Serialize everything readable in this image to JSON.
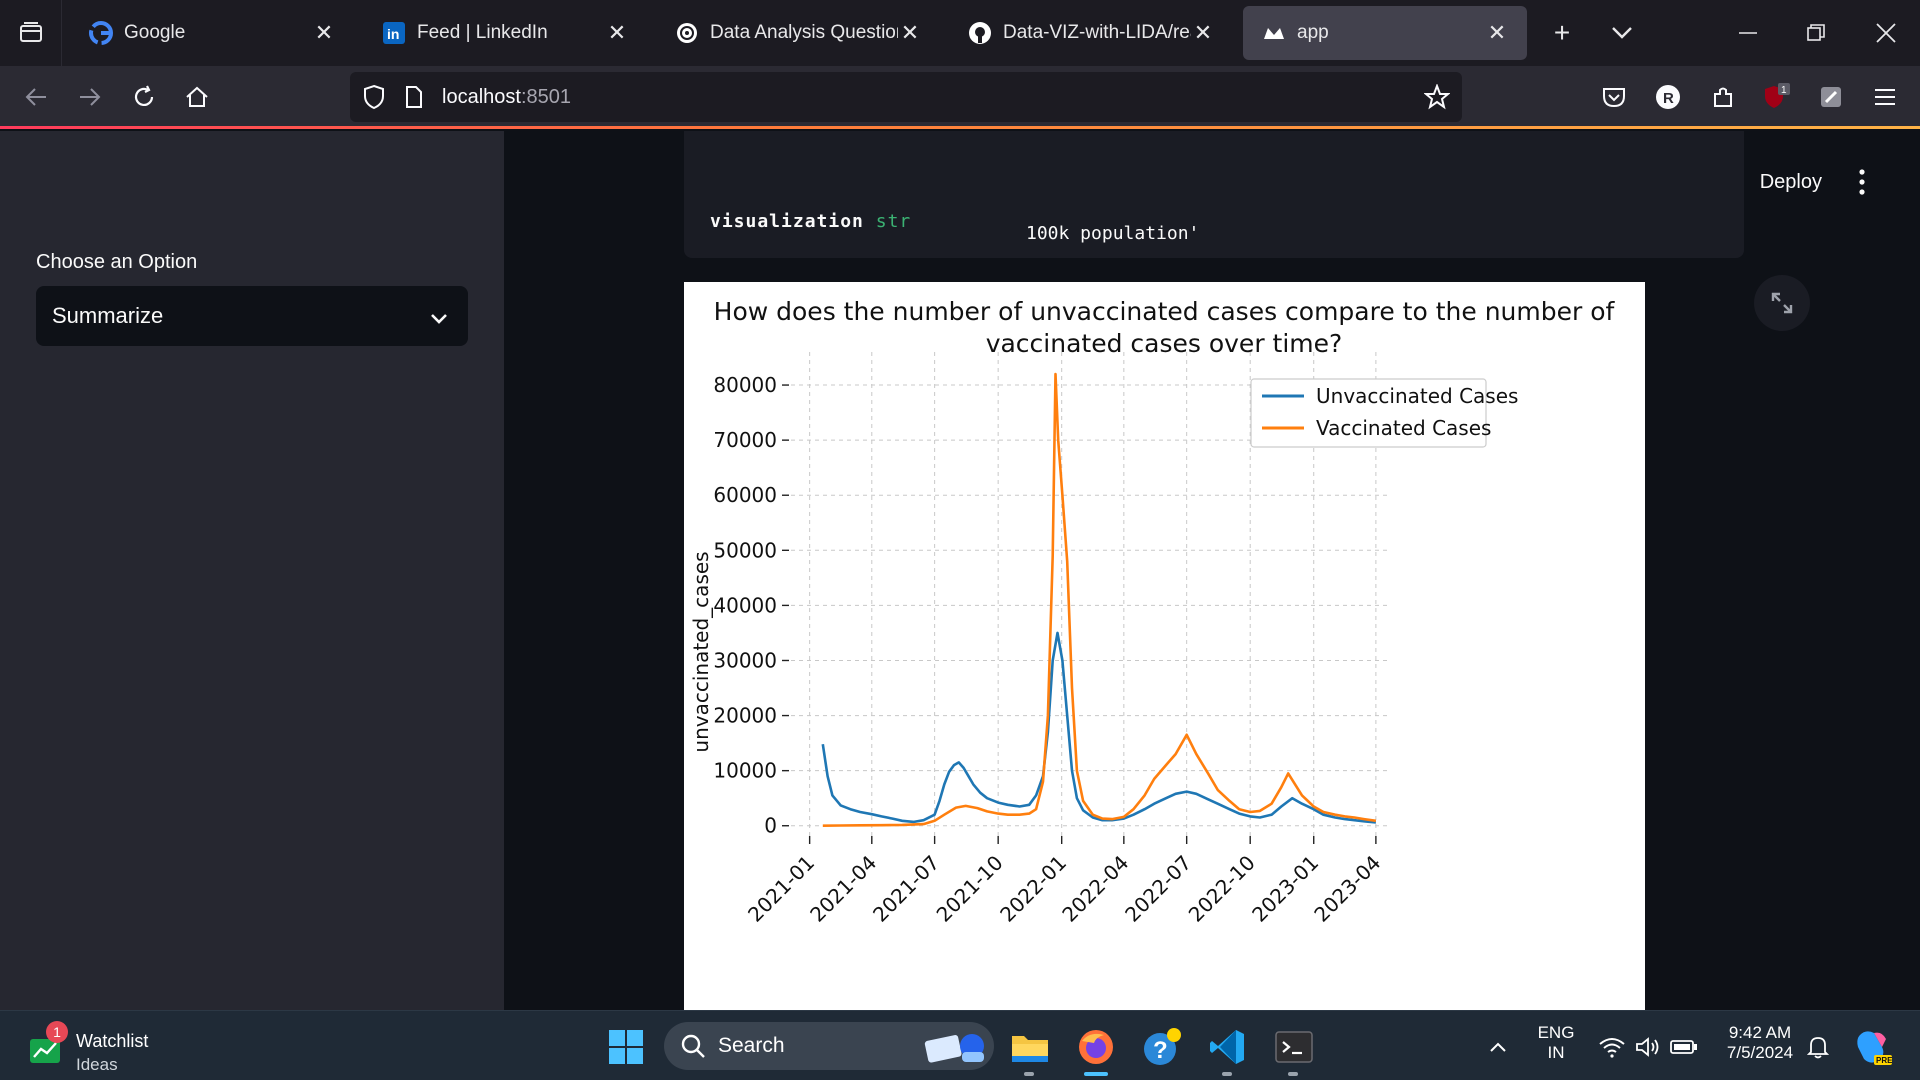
{
  "browser": {
    "tabs": [
      {
        "title": "Google",
        "favicon": "google-icon",
        "active": false
      },
      {
        "title": "Feed | LinkedIn",
        "favicon": "linkedin-icon",
        "active": false
      },
      {
        "title": "Data Analysis Questions",
        "favicon": "openai-icon",
        "active": false
      },
      {
        "title": "Data-VIZ-with-LIDA/readm",
        "favicon": "github-icon",
        "active": false
      },
      {
        "title": "app",
        "favicon": "streamlit-icon",
        "active": true
      }
    ],
    "url_host": "localhost",
    "url_port": ":8501",
    "extension_badge": "1"
  },
  "sidebar": {
    "select_label": "Choose an Option",
    "select_value": "Summarize"
  },
  "main": {
    "deploy_label": "Deploy",
    "code_cut_text": "visualization",
    "code_cut_str": "str",
    "code_line": "100k population'"
  },
  "chart_data": {
    "type": "line",
    "title": "How does the number of unvaccinated cases compare to the number of vaccinated cases over time?",
    "title_line1": "How does the number of unvaccinated cases compare to the number of",
    "title_line2": "vaccinated cases over time?",
    "xlabel": "",
    "ylabel": "unvaccinated_cases",
    "x_ticks": [
      "2021-01",
      "2021-04",
      "2021-07",
      "2021-10",
      "2022-01",
      "2022-04",
      "2022-07",
      "2022-10",
      "2023-01",
      "2023-04"
    ],
    "y_ticks": [
      "0",
      "10000",
      "20000",
      "30000",
      "40000",
      "50000",
      "60000",
      "70000",
      "80000"
    ],
    "ylim": [
      -1500,
      86000
    ],
    "grid": true,
    "legend": "top-right",
    "series": [
      {
        "name": "Unvaccinated Cases",
        "color": "#1f77b4",
        "points": [
          [
            "2021-01-20",
            14800
          ],
          [
            "2021-01-27",
            9000
          ],
          [
            "2021-02-03",
            5500
          ],
          [
            "2021-02-15",
            3700
          ],
          [
            "2021-03-01",
            3000
          ],
          [
            "2021-03-15",
            2500
          ],
          [
            "2021-04-01",
            2100
          ],
          [
            "2021-04-15",
            1700
          ],
          [
            "2021-05-01",
            1300
          ],
          [
            "2021-05-15",
            900
          ],
          [
            "2021-06-01",
            700
          ],
          [
            "2021-06-15",
            1000
          ],
          [
            "2021-07-01",
            2000
          ],
          [
            "2021-07-08",
            4500
          ],
          [
            "2021-07-15",
            7500
          ],
          [
            "2021-07-22",
            9800
          ],
          [
            "2021-07-29",
            11000
          ],
          [
            "2021-08-05",
            11500
          ],
          [
            "2021-08-12",
            10500
          ],
          [
            "2021-08-19",
            9000
          ],
          [
            "2021-08-26",
            7500
          ],
          [
            "2021-09-05",
            6000
          ],
          [
            "2021-09-15",
            5000
          ],
          [
            "2021-10-01",
            4200
          ],
          [
            "2021-10-15",
            3800
          ],
          [
            "2021-11-01",
            3500
          ],
          [
            "2021-11-15",
            3800
          ],
          [
            "2021-11-25",
            5500
          ],
          [
            "2021-12-05",
            9000
          ],
          [
            "2021-12-12",
            17000
          ],
          [
            "2021-12-19",
            30000
          ],
          [
            "2021-12-26",
            35000
          ],
          [
            "2022-01-02",
            30000
          ],
          [
            "2022-01-09",
            20000
          ],
          [
            "2022-01-16",
            10000
          ],
          [
            "2022-01-23",
            5000
          ],
          [
            "2022-02-01",
            2800
          ],
          [
            "2022-02-15",
            1500
          ],
          [
            "2022-03-01",
            1000
          ],
          [
            "2022-03-15",
            1000
          ],
          [
            "2022-04-01",
            1300
          ],
          [
            "2022-04-15",
            2000
          ],
          [
            "2022-05-01",
            3000
          ],
          [
            "2022-05-15",
            4000
          ],
          [
            "2022-06-01",
            5000
          ],
          [
            "2022-06-15",
            5800
          ],
          [
            "2022-07-01",
            6200
          ],
          [
            "2022-07-15",
            5800
          ],
          [
            "2022-08-01",
            4800
          ],
          [
            "2022-08-15",
            4000
          ],
          [
            "2022-09-01",
            3000
          ],
          [
            "2022-09-15",
            2200
          ],
          [
            "2022-10-01",
            1700
          ],
          [
            "2022-10-15",
            1500
          ],
          [
            "2022-11-01",
            2000
          ],
          [
            "2022-11-15",
            3500
          ],
          [
            "2022-12-01",
            5000
          ],
          [
            "2022-12-15",
            4000
          ],
          [
            "2023-01-01",
            3000
          ],
          [
            "2023-01-15",
            2000
          ],
          [
            "2023-02-01",
            1500
          ],
          [
            "2023-02-15",
            1200
          ],
          [
            "2023-03-01",
            1000
          ],
          [
            "2023-03-15",
            800
          ],
          [
            "2023-04-01",
            600
          ]
        ]
      },
      {
        "name": "Vaccinated Cases",
        "color": "#ff7f0e",
        "points": [
          [
            "2021-01-20",
            0
          ],
          [
            "2021-02-15",
            50
          ],
          [
            "2021-03-15",
            80
          ],
          [
            "2021-04-15",
            100
          ],
          [
            "2021-05-15",
            150
          ],
          [
            "2021-06-15",
            300
          ],
          [
            "2021-07-01",
            900
          ],
          [
            "2021-07-15",
            2000
          ],
          [
            "2021-08-01",
            3300
          ],
          [
            "2021-08-15",
            3600
          ],
          [
            "2021-09-01",
            3200
          ],
          [
            "2021-09-15",
            2600
          ],
          [
            "2021-10-01",
            2200
          ],
          [
            "2021-10-15",
            2000
          ],
          [
            "2021-11-01",
            2000
          ],
          [
            "2021-11-15",
            2200
          ],
          [
            "2021-11-25",
            3000
          ],
          [
            "2021-12-05",
            8000
          ],
          [
            "2021-12-12",
            20000
          ],
          [
            "2021-12-19",
            49000
          ],
          [
            "2021-12-23",
            82000
          ],
          [
            "2021-12-27",
            70000
          ],
          [
            "2022-01-02",
            60000
          ],
          [
            "2022-01-09",
            48000
          ],
          [
            "2022-01-16",
            25000
          ],
          [
            "2022-01-23",
            10000
          ],
          [
            "2022-02-01",
            4500
          ],
          [
            "2022-02-15",
            2000
          ],
          [
            "2022-03-01",
            1300
          ],
          [
            "2022-03-15",
            1200
          ],
          [
            "2022-04-01",
            1600
          ],
          [
            "2022-04-15",
            3000
          ],
          [
            "2022-05-01",
            5500
          ],
          [
            "2022-05-15",
            8500
          ],
          [
            "2022-06-01",
            11000
          ],
          [
            "2022-06-15",
            13000
          ],
          [
            "2022-07-01",
            16500
          ],
          [
            "2022-07-15",
            13000
          ],
          [
            "2022-08-01",
            9500
          ],
          [
            "2022-08-15",
            6500
          ],
          [
            "2022-09-01",
            4500
          ],
          [
            "2022-09-15",
            3000
          ],
          [
            "2022-10-01",
            2500
          ],
          [
            "2022-10-15",
            2700
          ],
          [
            "2022-11-01",
            4000
          ],
          [
            "2022-11-15",
            7000
          ],
          [
            "2022-11-25",
            9500
          ],
          [
            "2022-12-05",
            7500
          ],
          [
            "2022-12-15",
            5500
          ],
          [
            "2023-01-01",
            3500
          ],
          [
            "2023-01-15",
            2500
          ],
          [
            "2023-02-01",
            2000
          ],
          [
            "2023-02-15",
            1700
          ],
          [
            "2023-03-01",
            1500
          ],
          [
            "2023-03-15",
            1200
          ],
          [
            "2023-04-01",
            900
          ]
        ]
      }
    ]
  },
  "taskbar": {
    "widget_title": "Watchlist",
    "widget_sub": "Ideas",
    "widget_badge": "1",
    "search_label": "Search",
    "lang_line1": "ENG",
    "lang_line2": "IN",
    "time": "9:42 AM",
    "date": "7/5/2024"
  }
}
